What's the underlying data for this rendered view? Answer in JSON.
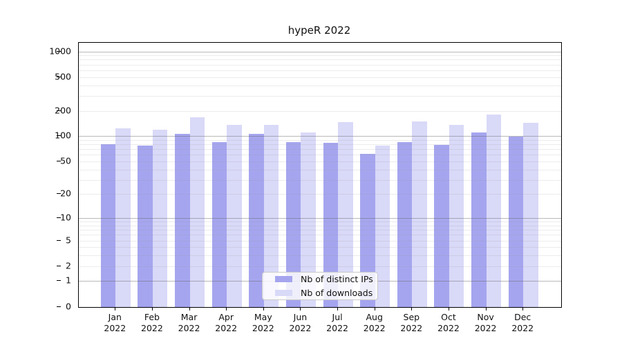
{
  "title": "hypeR 2022",
  "legend": {
    "items": [
      {
        "label": "Nb of distinct IPs",
        "color": "#a5a5ef"
      },
      {
        "label": "Nb of downloads",
        "color": "#d9d9f8"
      }
    ]
  },
  "chart_data": {
    "type": "bar",
    "title": "hypeR 2022",
    "categories": [
      "Jan 2022",
      "Feb 2022",
      "Mar 2022",
      "Apr 2022",
      "May 2022",
      "Jun 2022",
      "Jul 2022",
      "Aug 2022",
      "Sep 2022",
      "Oct 2022",
      "Nov 2022",
      "Dec 2022"
    ],
    "x_tick_months": [
      "Jan",
      "Feb",
      "Mar",
      "Apr",
      "May",
      "Jun",
      "Jul",
      "Aug",
      "Sep",
      "Oct",
      "Nov",
      "Dec"
    ],
    "x_tick_year": "2022",
    "series": [
      {
        "name": "Nb of distinct IPs",
        "color": "#a5a5ef",
        "values": [
          81,
          78,
          106,
          85,
          106,
          85,
          83,
          62,
          85,
          79,
          110,
          98
        ]
      },
      {
        "name": "Nb of downloads",
        "color": "#d9d9f8",
        "values": [
          124,
          119,
          168,
          137,
          135,
          110,
          148,
          78,
          150,
          135,
          181,
          144
        ]
      }
    ],
    "y_axis": {
      "scale": "log10(1+x)",
      "tick_values": [
        1000,
        500,
        200,
        100,
        50,
        20,
        10,
        5,
        2,
        1,
        0
      ],
      "tick_labels": [
        "1000",
        "500",
        "200",
        "100",
        "50",
        "20",
        "10",
        "5",
        "2",
        "1",
        "0"
      ],
      "major_gridlines": [
        1,
        10,
        100,
        1000
      ],
      "minor_gridlines": [
        2,
        3,
        4,
        5,
        6,
        7,
        8,
        9,
        20,
        30,
        40,
        50,
        60,
        70,
        80,
        90,
        200,
        300,
        400,
        500,
        600,
        700,
        800,
        900
      ]
    },
    "ylim": [
      0,
      1264
    ],
    "legend_position": "bottom-center-inside",
    "grid": true
  }
}
